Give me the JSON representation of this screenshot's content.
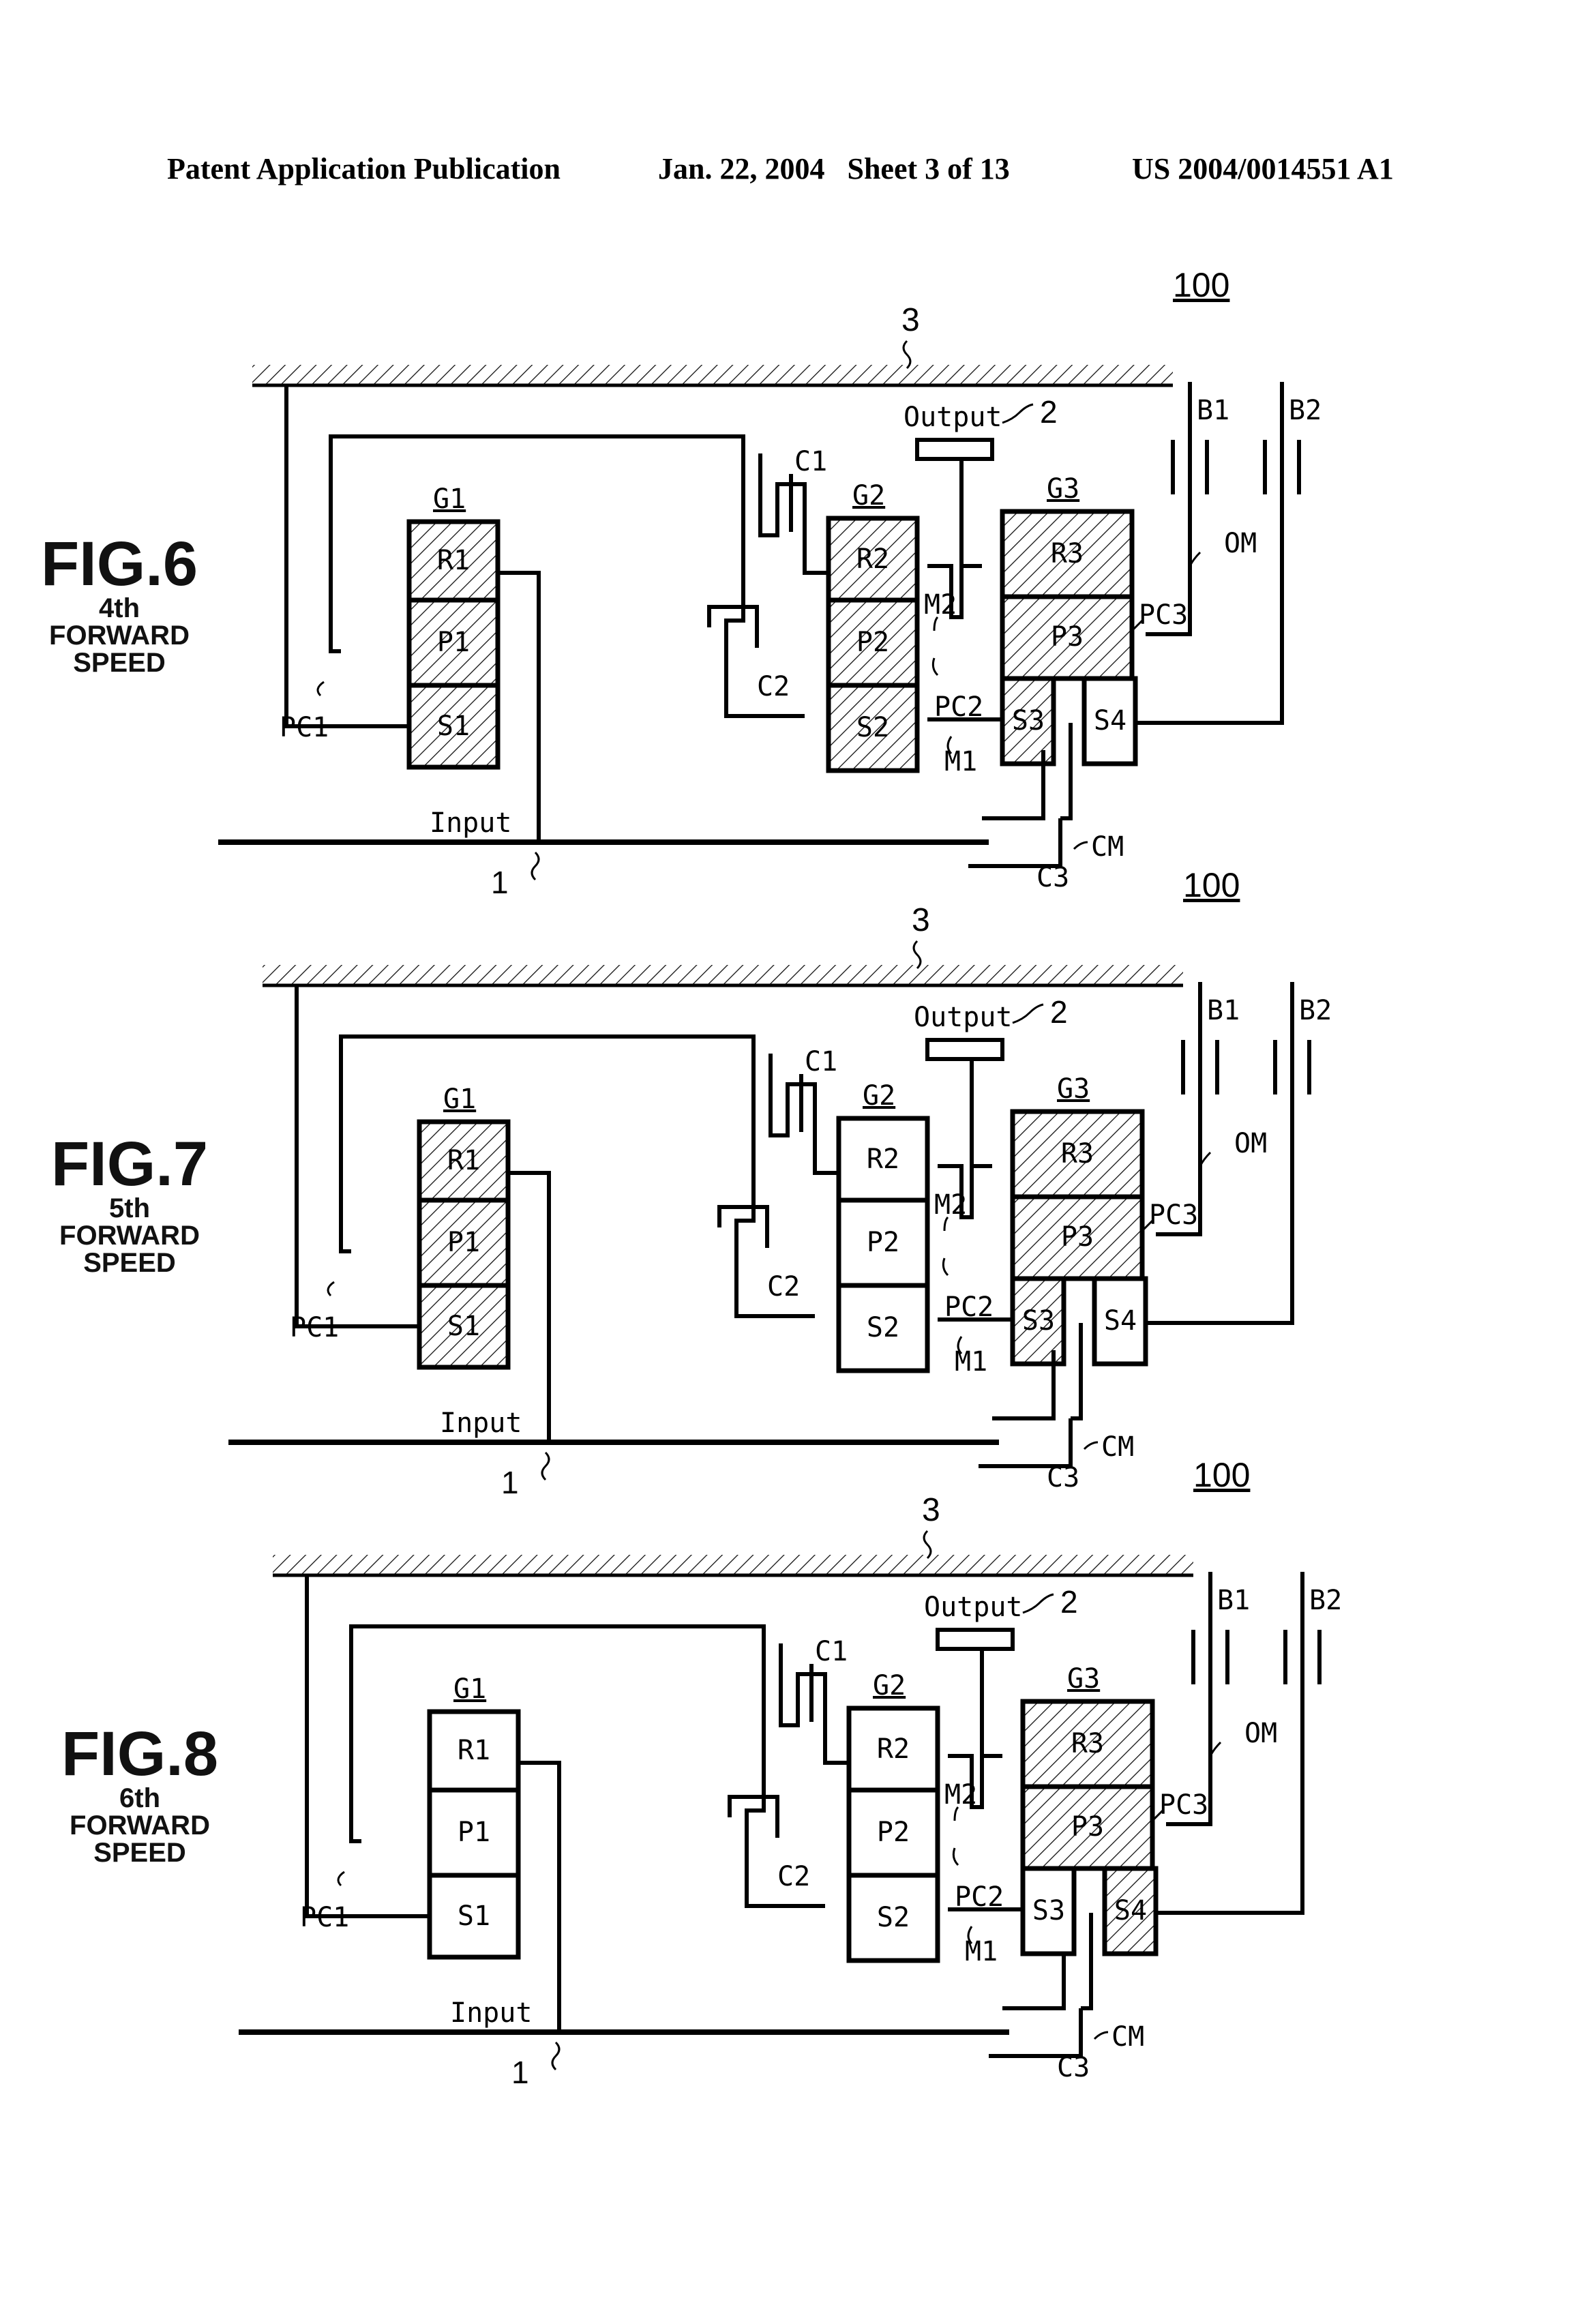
{
  "header": {
    "left": "Patent Application Publication",
    "middle": "Jan. 22, 2004   Sheet 3 of 13",
    "right": "US 2004/0014551 A1"
  },
  "figures": [
    {
      "fig": "FIG.6",
      "sub1": "4th",
      "sub2": "FORWARD",
      "sub3": "SPEED",
      "hatched": {
        "R1": true,
        "P1": true,
        "S1": true,
        "R2": true,
        "P2": true,
        "S2": true,
        "R3": true,
        "P3": true,
        "S3": true,
        "S4": false
      }
    },
    {
      "fig": "FIG.7",
      "sub1": "5th",
      "sub2": "FORWARD",
      "sub3": "SPEED",
      "hatched": {
        "R1": true,
        "P1": true,
        "S1": true,
        "R2": false,
        "P2": false,
        "S2": false,
        "R3": true,
        "P3": true,
        "S3": true,
        "S4": false
      }
    },
    {
      "fig": "FIG.8",
      "sub1": "6th",
      "sub2": "FORWARD",
      "sub3": "SPEED",
      "hatched": {
        "R1": false,
        "P1": false,
        "S1": false,
        "R2": false,
        "P2": false,
        "S2": false,
        "R3": true,
        "P3": true,
        "S3": false,
        "S4": true
      }
    }
  ],
  "labels": {
    "ref100": "100",
    "ref3": "3",
    "ref2": "2",
    "ref1": "1",
    "output": "Output",
    "input": "Input",
    "G1": "G1",
    "G2": "G2",
    "G3": "G3",
    "R1": "R1",
    "P1": "P1",
    "S1": "S1",
    "R2": "R2",
    "P2": "P2",
    "S2": "S2",
    "R3": "R3",
    "P3": "P3",
    "S3": "S3",
    "S4": "S4",
    "C1": "C1",
    "C2": "C2",
    "C3": "C3",
    "B1": "B1",
    "B2": "B2",
    "PC1": "PC1",
    "PC2": "PC2",
    "PC3": "PC3",
    "M1": "M1",
    "M2": "M2",
    "OM": "OM",
    "CM": "CM"
  }
}
